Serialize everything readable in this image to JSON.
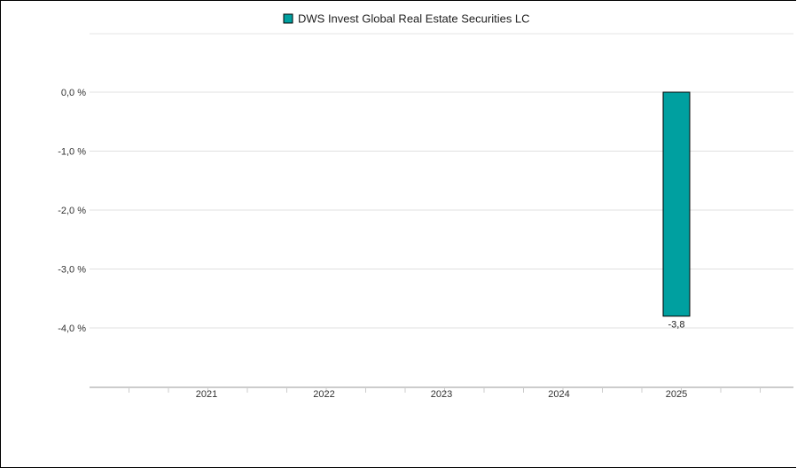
{
  "chart_data": {
    "type": "bar",
    "categories": [
      "2021",
      "2022",
      "2023",
      "2024",
      "2025"
    ],
    "series": [
      {
        "name": "DWS Invest Global Real Estate Securities LC",
        "color": "#00a0a0",
        "values": [
          null,
          null,
          null,
          null,
          -3.8
        ],
        "labels": [
          "",
          "",
          "",
          "",
          "-3,8"
        ]
      }
    ],
    "yticks": [
      0,
      -1,
      -2,
      -3,
      -4
    ],
    "ytick_labels": [
      "0,0 %",
      "-1,0 %",
      "-2,0 %",
      "-3,0 %",
      "-4,0 %"
    ],
    "ylim": [
      -5,
      1
    ],
    "grid": true,
    "legend_position": "top-center"
  }
}
